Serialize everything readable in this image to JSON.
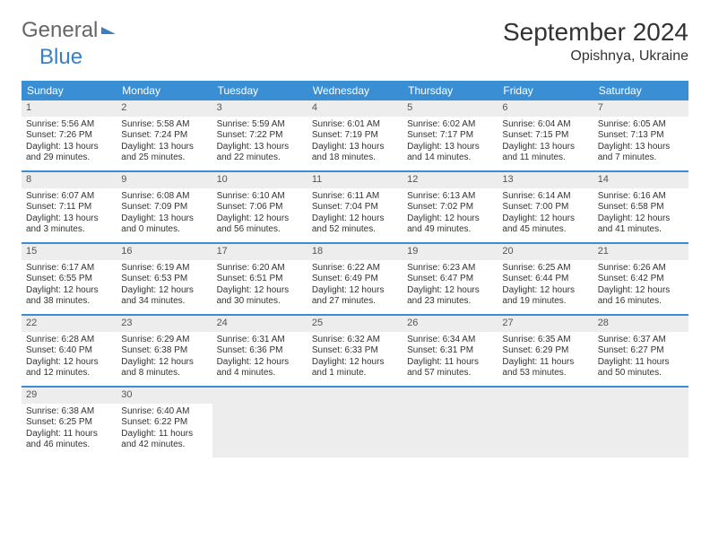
{
  "logo": {
    "text1": "General",
    "text2": "Blue"
  },
  "title": "September 2024",
  "location": "Opishnya, Ukraine",
  "colors": {
    "header_bg": "#3a8fd4",
    "daynum_bg": "#ededed",
    "border": "#3a8fd4",
    "text": "#333333",
    "logo_blue": "#3a7fc4"
  },
  "days_of_week": [
    "Sunday",
    "Monday",
    "Tuesday",
    "Wednesday",
    "Thursday",
    "Friday",
    "Saturday"
  ],
  "weeks": [
    [
      {
        "n": "1",
        "sr": "Sunrise: 5:56 AM",
        "ss": "Sunset: 7:26 PM",
        "d1": "Daylight: 13 hours",
        "d2": "and 29 minutes."
      },
      {
        "n": "2",
        "sr": "Sunrise: 5:58 AM",
        "ss": "Sunset: 7:24 PM",
        "d1": "Daylight: 13 hours",
        "d2": "and 25 minutes."
      },
      {
        "n": "3",
        "sr": "Sunrise: 5:59 AM",
        "ss": "Sunset: 7:22 PM",
        "d1": "Daylight: 13 hours",
        "d2": "and 22 minutes."
      },
      {
        "n": "4",
        "sr": "Sunrise: 6:01 AM",
        "ss": "Sunset: 7:19 PM",
        "d1": "Daylight: 13 hours",
        "d2": "and 18 minutes."
      },
      {
        "n": "5",
        "sr": "Sunrise: 6:02 AM",
        "ss": "Sunset: 7:17 PM",
        "d1": "Daylight: 13 hours",
        "d2": "and 14 minutes."
      },
      {
        "n": "6",
        "sr": "Sunrise: 6:04 AM",
        "ss": "Sunset: 7:15 PM",
        "d1": "Daylight: 13 hours",
        "d2": "and 11 minutes."
      },
      {
        "n": "7",
        "sr": "Sunrise: 6:05 AM",
        "ss": "Sunset: 7:13 PM",
        "d1": "Daylight: 13 hours",
        "d2": "and 7 minutes."
      }
    ],
    [
      {
        "n": "8",
        "sr": "Sunrise: 6:07 AM",
        "ss": "Sunset: 7:11 PM",
        "d1": "Daylight: 13 hours",
        "d2": "and 3 minutes."
      },
      {
        "n": "9",
        "sr": "Sunrise: 6:08 AM",
        "ss": "Sunset: 7:09 PM",
        "d1": "Daylight: 13 hours",
        "d2": "and 0 minutes."
      },
      {
        "n": "10",
        "sr": "Sunrise: 6:10 AM",
        "ss": "Sunset: 7:06 PM",
        "d1": "Daylight: 12 hours",
        "d2": "and 56 minutes."
      },
      {
        "n": "11",
        "sr": "Sunrise: 6:11 AM",
        "ss": "Sunset: 7:04 PM",
        "d1": "Daylight: 12 hours",
        "d2": "and 52 minutes."
      },
      {
        "n": "12",
        "sr": "Sunrise: 6:13 AM",
        "ss": "Sunset: 7:02 PM",
        "d1": "Daylight: 12 hours",
        "d2": "and 49 minutes."
      },
      {
        "n": "13",
        "sr": "Sunrise: 6:14 AM",
        "ss": "Sunset: 7:00 PM",
        "d1": "Daylight: 12 hours",
        "d2": "and 45 minutes."
      },
      {
        "n": "14",
        "sr": "Sunrise: 6:16 AM",
        "ss": "Sunset: 6:58 PM",
        "d1": "Daylight: 12 hours",
        "d2": "and 41 minutes."
      }
    ],
    [
      {
        "n": "15",
        "sr": "Sunrise: 6:17 AM",
        "ss": "Sunset: 6:55 PM",
        "d1": "Daylight: 12 hours",
        "d2": "and 38 minutes."
      },
      {
        "n": "16",
        "sr": "Sunrise: 6:19 AM",
        "ss": "Sunset: 6:53 PM",
        "d1": "Daylight: 12 hours",
        "d2": "and 34 minutes."
      },
      {
        "n": "17",
        "sr": "Sunrise: 6:20 AM",
        "ss": "Sunset: 6:51 PM",
        "d1": "Daylight: 12 hours",
        "d2": "and 30 minutes."
      },
      {
        "n": "18",
        "sr": "Sunrise: 6:22 AM",
        "ss": "Sunset: 6:49 PM",
        "d1": "Daylight: 12 hours",
        "d2": "and 27 minutes."
      },
      {
        "n": "19",
        "sr": "Sunrise: 6:23 AM",
        "ss": "Sunset: 6:47 PM",
        "d1": "Daylight: 12 hours",
        "d2": "and 23 minutes."
      },
      {
        "n": "20",
        "sr": "Sunrise: 6:25 AM",
        "ss": "Sunset: 6:44 PM",
        "d1": "Daylight: 12 hours",
        "d2": "and 19 minutes."
      },
      {
        "n": "21",
        "sr": "Sunrise: 6:26 AM",
        "ss": "Sunset: 6:42 PM",
        "d1": "Daylight: 12 hours",
        "d2": "and 16 minutes."
      }
    ],
    [
      {
        "n": "22",
        "sr": "Sunrise: 6:28 AM",
        "ss": "Sunset: 6:40 PM",
        "d1": "Daylight: 12 hours",
        "d2": "and 12 minutes."
      },
      {
        "n": "23",
        "sr": "Sunrise: 6:29 AM",
        "ss": "Sunset: 6:38 PM",
        "d1": "Daylight: 12 hours",
        "d2": "and 8 minutes."
      },
      {
        "n": "24",
        "sr": "Sunrise: 6:31 AM",
        "ss": "Sunset: 6:36 PM",
        "d1": "Daylight: 12 hours",
        "d2": "and 4 minutes."
      },
      {
        "n": "25",
        "sr": "Sunrise: 6:32 AM",
        "ss": "Sunset: 6:33 PM",
        "d1": "Daylight: 12 hours",
        "d2": "and 1 minute."
      },
      {
        "n": "26",
        "sr": "Sunrise: 6:34 AM",
        "ss": "Sunset: 6:31 PM",
        "d1": "Daylight: 11 hours",
        "d2": "and 57 minutes."
      },
      {
        "n": "27",
        "sr": "Sunrise: 6:35 AM",
        "ss": "Sunset: 6:29 PM",
        "d1": "Daylight: 11 hours",
        "d2": "and 53 minutes."
      },
      {
        "n": "28",
        "sr": "Sunrise: 6:37 AM",
        "ss": "Sunset: 6:27 PM",
        "d1": "Daylight: 11 hours",
        "d2": "and 50 minutes."
      }
    ],
    [
      {
        "n": "29",
        "sr": "Sunrise: 6:38 AM",
        "ss": "Sunset: 6:25 PM",
        "d1": "Daylight: 11 hours",
        "d2": "and 46 minutes."
      },
      {
        "n": "30",
        "sr": "Sunrise: 6:40 AM",
        "ss": "Sunset: 6:22 PM",
        "d1": "Daylight: 11 hours",
        "d2": "and 42 minutes."
      },
      {
        "empty": true
      },
      {
        "empty": true
      },
      {
        "empty": true
      },
      {
        "empty": true
      },
      {
        "empty": true
      }
    ]
  ]
}
